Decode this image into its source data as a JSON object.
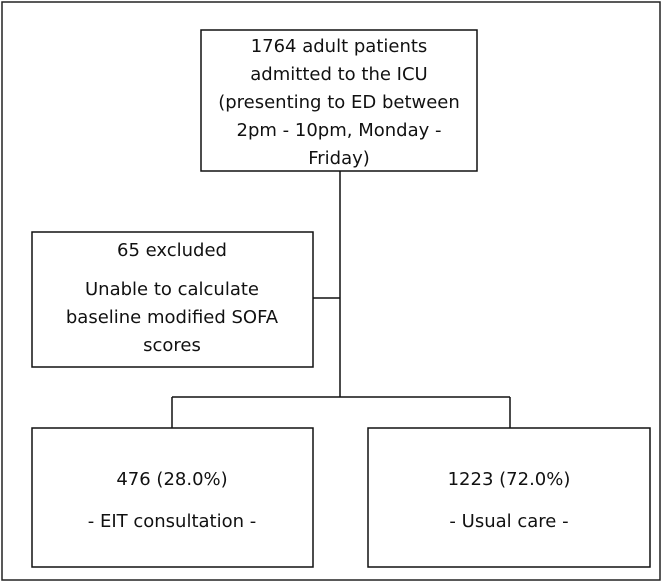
{
  "nodes": [
    {
      "lines": [
        "1764 adult patients",
        "admitted to the ICU",
        "(presenting to ED between",
        "2pm - 10pm, Monday -",
        "Friday)"
      ]
    },
    {
      "lines": [
        "65 excluded",
        "Unable to calculate",
        "baseline modified SOFA",
        "scores"
      ]
    },
    {
      "lines": [
        "476 (28.0%)",
        "- EIT consultation -"
      ]
    },
    {
      "lines": [
        "1223 (72.0%)",
        "- Usual care -"
      ]
    }
  ]
}
